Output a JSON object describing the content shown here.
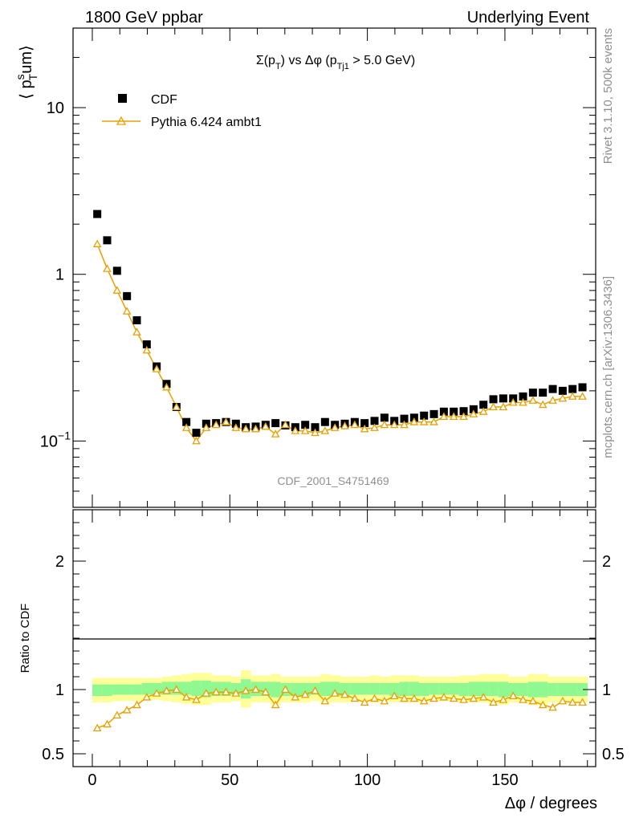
{
  "header": {
    "left": "1800 GeV ppbar",
    "right": "Underlying Event"
  },
  "side_text": {
    "rivet": "Rivet 3.1.10,  500k events",
    "site": "mcplots.cern.ch [arXiv:1306.3436]"
  },
  "plot_title": {
    "a": "Σ(p",
    "a_sub": "T",
    "b": ") vs Δφ (p",
    "b_sub": "Tj1",
    "c": " > 5.0 GeV)"
  },
  "watermark": "CDF_2001_S4751469",
  "colors": {
    "data": "#000000",
    "mc": "#e8a000",
    "band_inner": "#90f890",
    "band_outer": "#ffff99"
  },
  "chart_data": [
    {
      "type": "scatter",
      "ylabel": {
        "main": "⟨ p",
        "sup": "s",
        "sub": "T",
        "tail": "um⟩"
      },
      "y_scale": "log",
      "ylim": [
        0.04,
        30
      ],
      "xlim": [
        -7,
        183
      ],
      "y_ticks": [
        {
          "value": 10,
          "label": "10"
        },
        {
          "value": 1,
          "label": "1"
        },
        {
          "value": 0.1,
          "label": "10",
          "sup": "−1"
        }
      ],
      "legend_position": "top-left",
      "series": [
        {
          "name": "CDF",
          "marker": "square",
          "x": [
            1.8,
            5.4,
            9,
            12.6,
            16.2,
            19.8,
            23.4,
            27,
            30.6,
            34.2,
            37.8,
            41.4,
            45,
            48.6,
            52.2,
            55.8,
            59.4,
            63,
            66.6,
            70.2,
            73.8,
            77.4,
            81,
            84.6,
            88.2,
            91.8,
            95.4,
            99,
            102.6,
            106.2,
            109.8,
            113.4,
            117,
            120.6,
            124.2,
            127.8,
            131.4,
            135,
            138.6,
            142.2,
            145.8,
            149.4,
            153,
            156.6,
            160.2,
            163.8,
            167.4,
            171,
            174.6,
            178.2
          ],
          "y": [
            2.3,
            1.6,
            1.05,
            0.74,
            0.53,
            0.38,
            0.28,
            0.22,
            0.16,
            0.13,
            0.112,
            0.127,
            0.128,
            0.13,
            0.127,
            0.121,
            0.122,
            0.125,
            0.128,
            0.124,
            0.121,
            0.125,
            0.121,
            0.13,
            0.125,
            0.127,
            0.13,
            0.128,
            0.132,
            0.138,
            0.132,
            0.136,
            0.138,
            0.142,
            0.145,
            0.15,
            0.15,
            0.151,
            0.155,
            0.165,
            0.178,
            0.18,
            0.18,
            0.185,
            0.195,
            0.195,
            0.205,
            0.2,
            0.205,
            0.21
          ]
        },
        {
          "name": "Pythia 6.424 ambt1",
          "marker": "triangle",
          "x": [
            1.8,
            5.4,
            9,
            12.6,
            16.2,
            19.8,
            23.4,
            27,
            30.6,
            34.2,
            37.8,
            41.4,
            45,
            48.6,
            52.2,
            55.8,
            59.4,
            63,
            66.6,
            70.2,
            73.8,
            77.4,
            81,
            84.6,
            88.2,
            91.8,
            95.4,
            99,
            102.6,
            106.2,
            109.8,
            113.4,
            117,
            120.6,
            124.2,
            127.8,
            131.4,
            135,
            138.6,
            142.2,
            145.8,
            149.4,
            153,
            156.6,
            160.2,
            163.8,
            167.4,
            171,
            174.6,
            178.2
          ],
          "y": [
            1.52,
            1.08,
            0.8,
            0.6,
            0.45,
            0.35,
            0.27,
            0.21,
            0.16,
            0.12,
            0.1,
            0.12,
            0.125,
            0.13,
            0.12,
            0.118,
            0.118,
            0.122,
            0.11,
            0.125,
            0.115,
            0.115,
            0.112,
            0.115,
            0.12,
            0.123,
            0.125,
            0.118,
            0.12,
            0.125,
            0.125,
            0.125,
            0.13,
            0.13,
            0.13,
            0.14,
            0.14,
            0.14,
            0.145,
            0.15,
            0.16,
            0.16,
            0.17,
            0.17,
            0.175,
            0.165,
            0.175,
            0.18,
            0.185,
            0.185
          ]
        }
      ]
    },
    {
      "type": "line",
      "ylabel": "Ratio to CDF",
      "xlabel": "Δφ / degrees",
      "ylim": [
        0.4,
        2.4
      ],
      "xlim": [
        -7,
        183
      ],
      "x_ticks": [
        0,
        50,
        100,
        150
      ],
      "y_ticks": [
        0.5,
        1,
        2
      ],
      "series": [
        {
          "name": "Pythia 6.424 ambt1",
          "x": [
            1.8,
            5.4,
            9,
            12.6,
            16.2,
            19.8,
            23.4,
            27,
            30.6,
            34.2,
            37.8,
            41.4,
            45,
            48.6,
            52.2,
            55.8,
            59.4,
            63,
            66.6,
            70.2,
            73.8,
            77.4,
            81,
            84.6,
            88.2,
            91.8,
            95.4,
            99,
            102.6,
            106.2,
            109.8,
            113.4,
            117,
            120.6,
            124.2,
            127.8,
            131.4,
            135,
            138.6,
            142.2,
            145.8,
            149.4,
            153,
            156.6,
            160.2,
            163.8,
            167.4,
            171,
            174.6,
            178.2
          ],
          "y": [
            0.7,
            0.73,
            0.8,
            0.84,
            0.88,
            0.94,
            0.97,
            0.99,
            1.0,
            0.94,
            0.92,
            0.97,
            0.98,
            0.98,
            0.97,
            0.99,
            1.0,
            0.98,
            0.88,
            1.0,
            0.94,
            0.96,
            0.99,
            0.91,
            0.97,
            0.96,
            0.93,
            0.9,
            0.93,
            0.91,
            0.95,
            0.93,
            0.93,
            0.91,
            0.93,
            0.94,
            0.93,
            0.92,
            0.93,
            0.94,
            0.9,
            0.92,
            0.95,
            0.92,
            0.91,
            0.88,
            0.86,
            0.91,
            0.9,
            0.9
          ]
        }
      ],
      "band_inner": {
        "lo": [
          0.95,
          0.95,
          0.96,
          0.96,
          0.96,
          0.96,
          0.96,
          0.96,
          0.96,
          0.96,
          0.95,
          0.94,
          0.95,
          0.95,
          0.96,
          0.93,
          0.95,
          0.95,
          0.94,
          0.95,
          0.95,
          0.95,
          0.96,
          0.95,
          0.95,
          0.95,
          0.96,
          0.96,
          0.96,
          0.96,
          0.95,
          0.95,
          0.95,
          0.95,
          0.96,
          0.96,
          0.96,
          0.95,
          0.95,
          0.95,
          0.95,
          0.94,
          0.95,
          0.95,
          0.94,
          0.94,
          0.95,
          0.95,
          0.95,
          0.95
        ],
        "hi": [
          1.04,
          1.04,
          1.04,
          1.04,
          1.04,
          1.05,
          1.05,
          1.06,
          1.06,
          1.06,
          1.07,
          1.07,
          1.06,
          1.06,
          1.05,
          1.08,
          1.06,
          1.06,
          1.06,
          1.05,
          1.05,
          1.05,
          1.05,
          1.06,
          1.06,
          1.05,
          1.05,
          1.05,
          1.05,
          1.05,
          1.05,
          1.06,
          1.06,
          1.05,
          1.05,
          1.05,
          1.05,
          1.05,
          1.06,
          1.06,
          1.06,
          1.06,
          1.05,
          1.05,
          1.06,
          1.06,
          1.05,
          1.05,
          1.05,
          1.05
        ]
      },
      "band_outer": {
        "lo": [
          0.9,
          0.9,
          0.91,
          0.91,
          0.91,
          0.92,
          0.92,
          0.91,
          0.9,
          0.89,
          0.88,
          0.88,
          0.9,
          0.9,
          0.91,
          0.86,
          0.9,
          0.9,
          0.88,
          0.9,
          0.9,
          0.9,
          0.91,
          0.89,
          0.9,
          0.9,
          0.91,
          0.91,
          0.9,
          0.91,
          0.9,
          0.9,
          0.9,
          0.9,
          0.91,
          0.91,
          0.91,
          0.9,
          0.9,
          0.9,
          0.89,
          0.88,
          0.9,
          0.9,
          0.88,
          0.88,
          0.9,
          0.9,
          0.9,
          0.9
        ],
        "hi": [
          1.09,
          1.09,
          1.09,
          1.09,
          1.09,
          1.09,
          1.09,
          1.1,
          1.11,
          1.12,
          1.13,
          1.13,
          1.11,
          1.11,
          1.1,
          1.15,
          1.11,
          1.11,
          1.12,
          1.1,
          1.1,
          1.1,
          1.1,
          1.12,
          1.11,
          1.1,
          1.1,
          1.1,
          1.11,
          1.1,
          1.11,
          1.11,
          1.11,
          1.1,
          1.1,
          1.1,
          1.1,
          1.11,
          1.11,
          1.12,
          1.12,
          1.12,
          1.1,
          1.1,
          1.12,
          1.12,
          1.1,
          1.1,
          1.1,
          1.1
        ]
      }
    }
  ]
}
